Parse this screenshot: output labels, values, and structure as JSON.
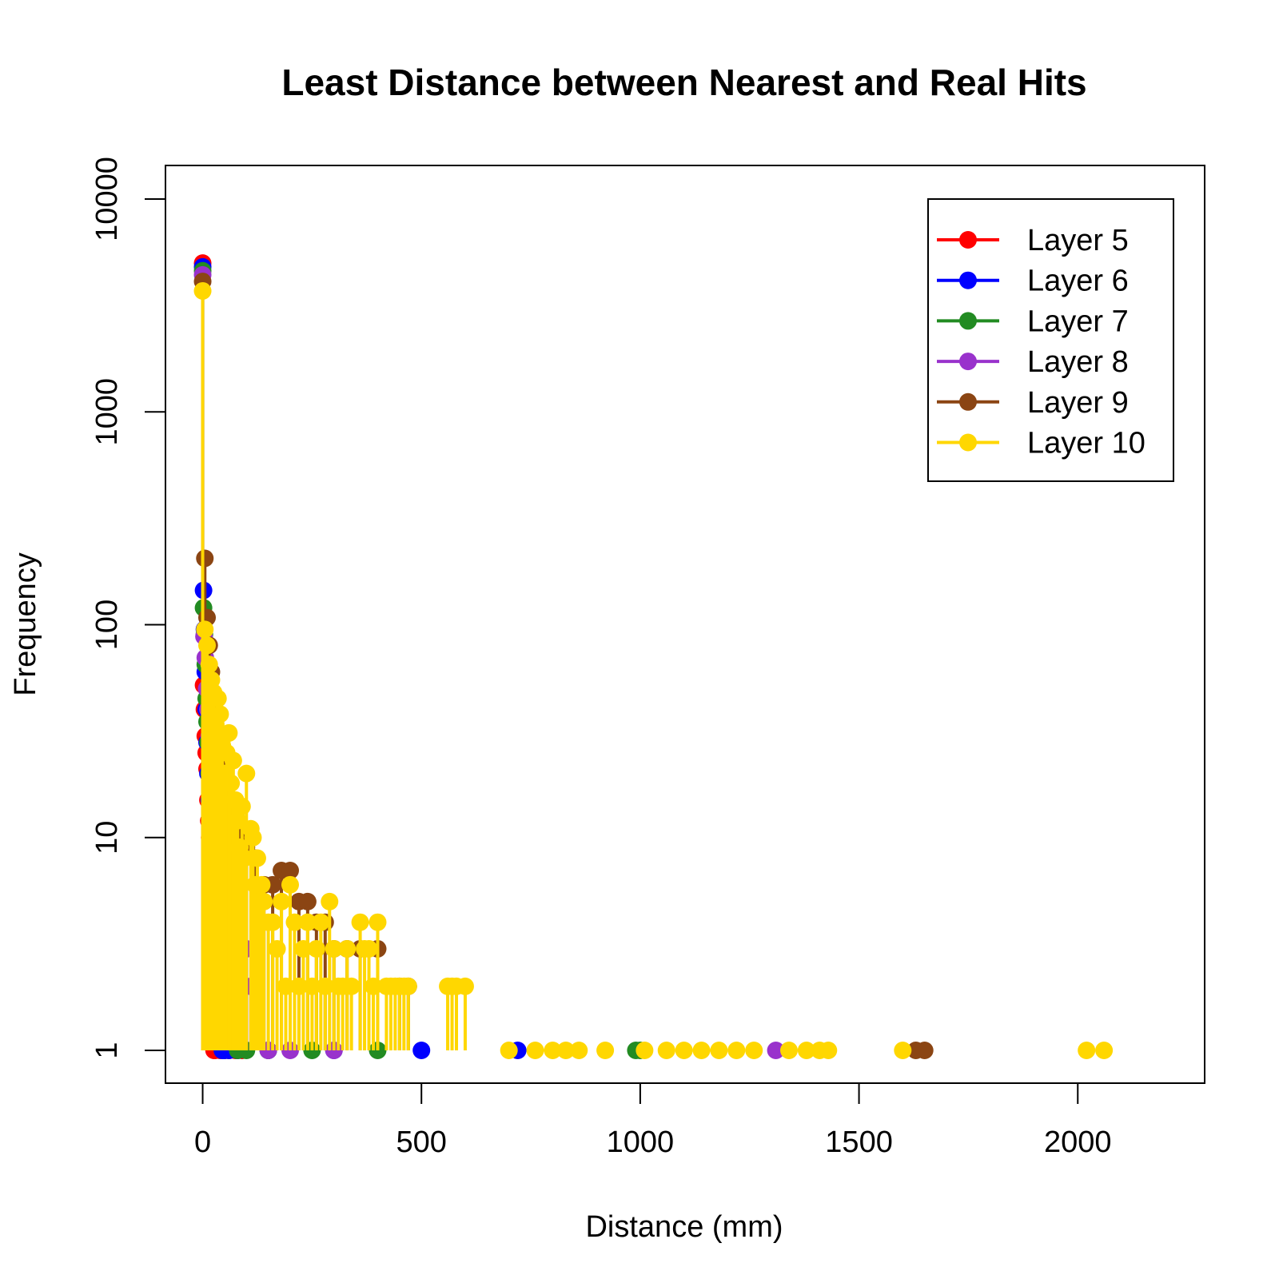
{
  "chart_data": {
    "type": "line",
    "title": "Least Distance between Nearest and Real Hits",
    "xlabel": "Distance (mm)",
    "ylabel": "Frequency",
    "xlim": [
      -85,
      2290
    ],
    "ylim": [
      1,
      10000
    ],
    "y_scale": "log",
    "x_ticks": [
      0,
      500,
      1000,
      1500,
      2000
    ],
    "x_tick_labels": [
      "0",
      "500",
      "1000",
      "1500",
      "2000"
    ],
    "y_ticks": [
      1,
      10,
      100,
      1000,
      10000
    ],
    "y_tick_labels": [
      "1",
      "10",
      "100",
      "1000",
      "10000"
    ],
    "grid": false,
    "legend_position": "top-right",
    "series": [
      {
        "name": "Layer 5",
        "color": "#FF0000",
        "x": [
          0,
          2,
          4,
          6,
          8,
          10,
          12,
          14,
          16,
          18,
          20,
          22,
          24,
          26,
          28,
          30,
          35,
          40,
          45,
          50,
          60,
          75,
          90
        ],
        "y": [
          5000,
          52,
          40,
          30,
          25,
          21,
          15,
          12,
          10,
          9,
          5,
          3,
          2,
          1,
          1,
          3,
          2,
          1,
          2,
          1,
          1,
          1,
          1
        ]
      },
      {
        "name": "Layer 6",
        "color": "#0000FF",
        "x": [
          0,
          2,
          4,
          6,
          8,
          10,
          12,
          15,
          18,
          20,
          22,
          25,
          28,
          30,
          33,
          36,
          40,
          45,
          50,
          60,
          80,
          150,
          300,
          500,
          720
        ],
        "y": [
          4800,
          145,
          95,
          60,
          40,
          28,
          20,
          15,
          11,
          9,
          8,
          7,
          5,
          4,
          3,
          3,
          2,
          1,
          1,
          1,
          1,
          1,
          1,
          1,
          1
        ]
      },
      {
        "name": "Layer 7",
        "color": "#228B22",
        "x": [
          0,
          2,
          4,
          6,
          8,
          10,
          12,
          15,
          18,
          20,
          25,
          30,
          35,
          40,
          45,
          50,
          55,
          60,
          70,
          80,
          100,
          150,
          250,
          400,
          990,
          1000
        ],
        "y": [
          4600,
          120,
          90,
          65,
          45,
          35,
          28,
          20,
          17,
          15,
          10,
          8,
          7,
          5,
          3,
          4,
          2,
          3,
          2,
          1,
          1,
          1,
          1,
          1,
          1,
          1
        ]
      },
      {
        "name": "Layer 8",
        "color": "#9932CC",
        "x": [
          0,
          3,
          6,
          9,
          12,
          15,
          20,
          25,
          30,
          35,
          40,
          45,
          50,
          60,
          70,
          80,
          90,
          100,
          110,
          120,
          150,
          200,
          300,
          1310
        ],
        "y": [
          4400,
          88,
          70,
          50,
          40,
          30,
          25,
          20,
          15,
          14,
          12,
          10,
          8,
          6,
          5,
          4,
          3,
          3,
          2,
          2,
          1,
          1,
          1,
          1
        ]
      },
      {
        "name": "Layer 9",
        "color": "#8B4513",
        "x": [
          0,
          5,
          10,
          15,
          20,
          25,
          30,
          40,
          50,
          60,
          70,
          80,
          90,
          100,
          120,
          140,
          160,
          180,
          200,
          220,
          240,
          260,
          280,
          300,
          330,
          360,
          400,
          450,
          470,
          1630,
          1650
        ],
        "y": [
          4100,
          205,
          108,
          80,
          60,
          45,
          36,
          27,
          22,
          18,
          14,
          12,
          10,
          9,
          8,
          6,
          6,
          7,
          7,
          5,
          5,
          4,
          4,
          3,
          3,
          3,
          3,
          2,
          2,
          1,
          1
        ]
      },
      {
        "name": "Layer 10",
        "color": "#FFD700",
        "x": [
          0,
          5,
          10,
          15,
          20,
          25,
          30,
          35,
          40,
          45,
          50,
          55,
          60,
          65,
          70,
          75,
          80,
          85,
          90,
          95,
          100,
          110,
          115,
          120,
          125,
          130,
          135,
          140,
          150,
          160,
          170,
          180,
          190,
          200,
          210,
          220,
          230,
          240,
          250,
          260,
          270,
          280,
          290,
          300,
          310,
          320,
          330,
          340,
          360,
          370,
          380,
          390,
          400,
          420,
          430,
          440,
          450,
          460,
          470,
          560,
          570,
          580,
          600,
          700,
          760,
          800,
          830,
          860,
          920,
          1010,
          1060,
          1100,
          1140,
          1180,
          1220,
          1260,
          1340,
          1380,
          1410,
          1430,
          1600,
          2020,
          2060
        ],
        "y": [
          3700,
          95,
          80,
          65,
          55,
          48,
          34,
          45,
          38,
          27,
          20,
          25,
          31,
          18,
          23,
          15,
          12,
          9,
          14,
          8,
          20,
          11,
          10,
          6,
          8,
          5,
          6,
          5,
          4,
          4,
          3,
          5,
          2,
          6,
          4,
          2,
          3,
          4,
          2,
          3,
          4,
          2,
          5,
          3,
          2,
          2,
          3,
          2,
          4,
          3,
          3,
          2,
          4,
          2,
          2,
          2,
          2,
          2,
          2,
          2,
          2,
          2,
          2,
          1,
          1,
          1,
          1,
          1,
          1,
          1,
          1,
          1,
          1,
          1,
          1,
          1,
          1,
          1,
          1,
          1,
          1,
          1,
          1
        ]
      }
    ]
  }
}
